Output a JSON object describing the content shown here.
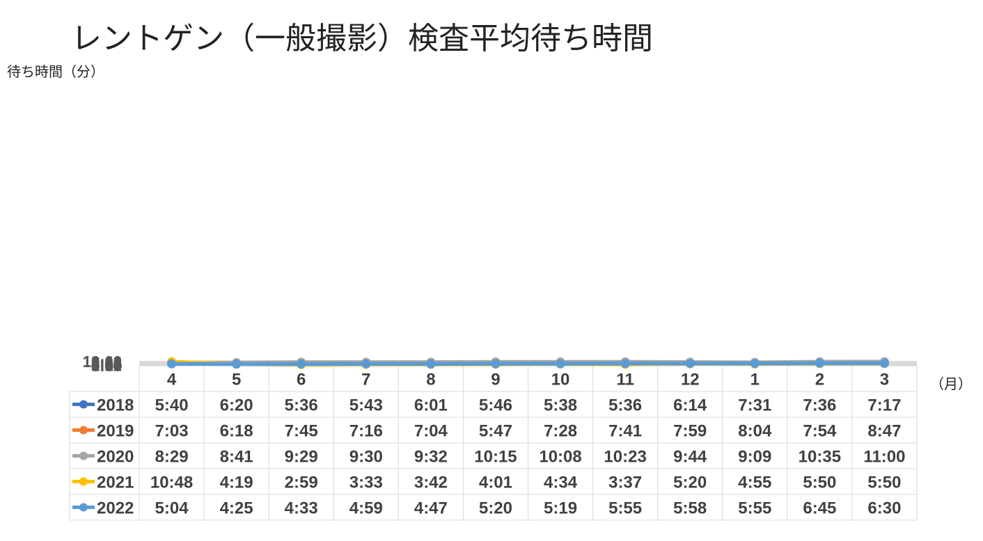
{
  "chart_data": {
    "type": "line",
    "title": "レントゲン（一般撮影）検査平均待ち時間",
    "ylabel": "待ち時間（分）",
    "xlabel": "（月）",
    "ylim": [
      0,
      720
    ],
    "yticks": [
      "0:00",
      "1:12",
      "2:24",
      "3:36",
      "4:48",
      "6:00",
      "7:12",
      "8:24",
      "9:36",
      "10:48",
      "12:00"
    ],
    "categories": [
      "4",
      "5",
      "6",
      "7",
      "8",
      "9",
      "10",
      "11",
      "12",
      "1",
      "2",
      "3"
    ],
    "series": [
      {
        "name": "2018",
        "color": "#4472c4",
        "labels": [
          "5:40",
          "6:20",
          "5:36",
          "5:43",
          "6:01",
          "5:46",
          "5:38",
          "5:36",
          "6:14",
          "7:31",
          "7:36",
          "7:17"
        ]
      },
      {
        "name": "2019",
        "color": "#ed7d31",
        "labels": [
          "7:03",
          "6:18",
          "7:45",
          "7:16",
          "7:04",
          "5:47",
          "7:28",
          "7:41",
          "7:59",
          "8:04",
          "7:54",
          "8:47"
        ]
      },
      {
        "name": "2020",
        "color": "#a5a5a5",
        "labels": [
          "8:29",
          "8:41",
          "9:29",
          "9:30",
          "9:32",
          "10:15",
          "10:08",
          "10:23",
          "9:44",
          "9:09",
          "10:35",
          "11:00"
        ]
      },
      {
        "name": "2021",
        "color": "#ffc000",
        "labels": [
          "10:48",
          "4:19",
          "2:59",
          "3:33",
          "3:42",
          "4:01",
          "4:34",
          "3:37",
          "5:20",
          "4:55",
          "5:50",
          "5:50"
        ]
      },
      {
        "name": "2022",
        "color": "#5b9bd5",
        "labels": [
          "5:04",
          "4:25",
          "4:33",
          "4:59",
          "4:47",
          "5:20",
          "5:19",
          "5:55",
          "5:58",
          "5:55",
          "6:45",
          "6:30"
        ]
      }
    ],
    "grid": true,
    "legend": "data-table"
  }
}
